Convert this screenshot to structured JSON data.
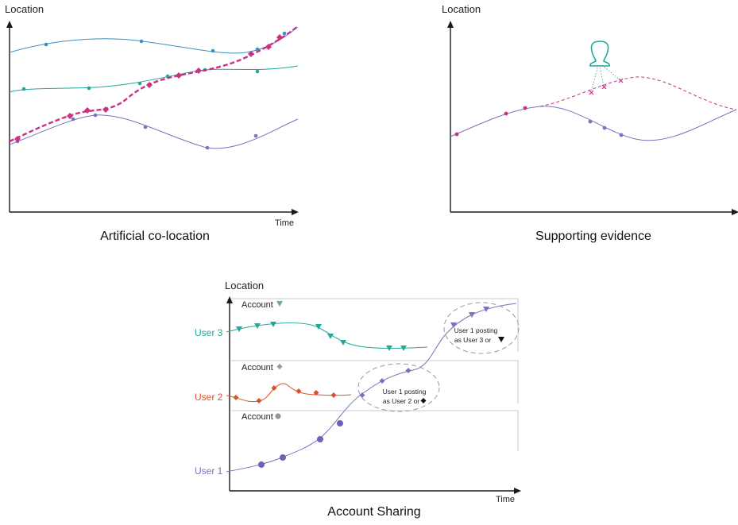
{
  "panel_a": {
    "title": "Artificial co-location",
    "y_axis_label": "Location",
    "x_axis_label": "Time"
  },
  "panel_b": {
    "title": "Supporting evidence",
    "y_axis_label": "Location"
  },
  "panel_c": {
    "title": "Account Sharing",
    "y_axis_label": "Location",
    "x_axis_label": "Time",
    "user_labels": {
      "user3": "User 3",
      "user2": "User 2",
      "user1": "User 1"
    },
    "account_labels": {
      "account_triangle": "Account",
      "account_diamond": "Account",
      "account_circle": "Account"
    },
    "callout_right": {
      "line1": "User 1 posting",
      "line2": "as User 3 or"
    },
    "callout_left": {
      "line1": "User 1 posting",
      "line2": "as User 2 or"
    }
  },
  "colors": {
    "blue": "#3c8fc4",
    "teal": "#22a898",
    "purple": "#7a72bb",
    "magenta": "#cc2f86",
    "orange": "#d9532a",
    "grey": "#9aa7a3",
    "axis": "#1a1a1a"
  },
  "icons": {
    "person": "person-silhouette-icon"
  }
}
